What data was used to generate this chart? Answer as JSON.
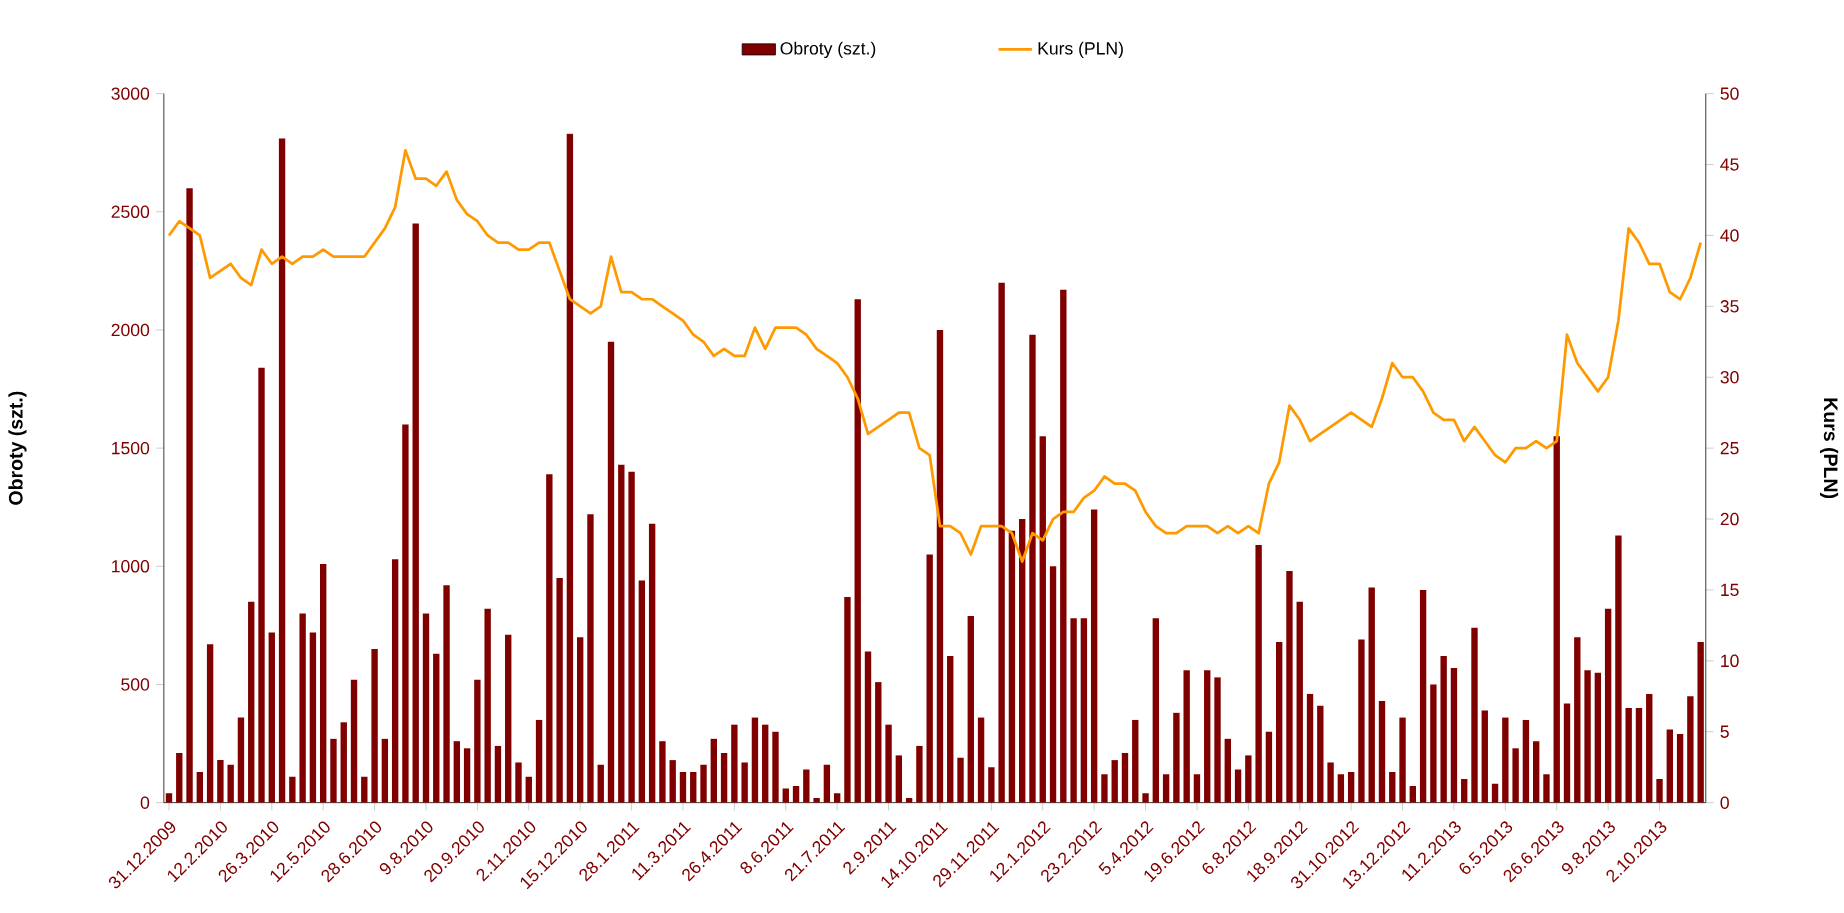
{
  "chart_data": {
    "type": "bar",
    "categories": [
      "31.12.2009",
      null,
      null,
      null,
      null,
      "12.2.2010",
      null,
      null,
      null,
      null,
      "26.3.2010",
      null,
      null,
      null,
      null,
      "12.5.2010",
      null,
      null,
      null,
      null,
      "28.6.2010",
      null,
      null,
      null,
      null,
      "9.8.2010",
      null,
      null,
      null,
      null,
      "20.9.2010",
      null,
      null,
      null,
      null,
      "2.11.2010",
      null,
      null,
      null,
      null,
      "15.12.2010",
      null,
      null,
      null,
      null,
      "28.1.2011",
      null,
      null,
      null,
      null,
      "11.3.2011",
      null,
      null,
      null,
      null,
      "26.4.2011",
      null,
      null,
      null,
      null,
      "8.6.2011",
      null,
      null,
      null,
      null,
      "21.7.2011",
      null,
      null,
      null,
      null,
      "2.9.2011",
      null,
      null,
      null,
      null,
      "14.10.2011",
      null,
      null,
      null,
      null,
      "29.11.2011",
      null,
      null,
      null,
      null,
      "12.1.2012",
      null,
      null,
      null,
      null,
      "23.2.2012",
      null,
      null,
      null,
      null,
      "5.4.2012",
      null,
      null,
      null,
      null,
      "19.6.2012",
      null,
      null,
      null,
      null,
      "6.8.2012",
      null,
      null,
      null,
      null,
      "18.9.2012",
      null,
      null,
      null,
      null,
      "31.10.2012",
      null,
      null,
      null,
      null,
      "13.12.2012",
      null,
      null,
      null,
      null,
      "11.2.2013",
      null,
      null,
      null,
      null,
      "6.5.2013",
      null,
      null,
      null,
      null,
      "26.6.2013",
      null,
      null,
      null,
      null,
      "9.8.2013",
      null,
      null,
      null,
      null,
      "2.10.2013",
      null,
      null,
      null,
      null
    ],
    "series": [
      {
        "name": "Obroty (szt.)",
        "color": "#800000",
        "values": [
          40,
          210,
          2600,
          130,
          670,
          180,
          160,
          360,
          850,
          1840,
          720,
          2810,
          110,
          800,
          720,
          1010,
          270,
          340,
          520,
          110,
          650,
          270,
          1030,
          1600,
          2450,
          800,
          630,
          920,
          260,
          230,
          520,
          820,
          240,
          710,
          170,
          110,
          350,
          1390,
          950,
          2830,
          700,
          1220,
          160,
          1950,
          1430,
          1400,
          940,
          1180,
          260,
          180,
          130,
          130,
          160,
          270,
          210,
          330,
          170,
          360,
          330,
          300,
          60,
          70,
          140,
          20,
          160,
          40,
          870,
          2130,
          640,
          510,
          330,
          200,
          20,
          240,
          1050,
          2000,
          620,
          190,
          790,
          360,
          150,
          2200,
          1150,
          1200,
          1980,
          1550,
          1000,
          2170,
          780,
          780,
          1240,
          120,
          180,
          210,
          350,
          40,
          780,
          120,
          380,
          560,
          120,
          560,
          530,
          270,
          140,
          200,
          1090,
          300,
          680,
          980,
          850,
          460,
          410,
          170,
          120,
          130,
          690,
          910,
          430,
          130,
          360,
          70,
          900,
          500,
          620,
          570,
          100,
          740,
          390,
          80,
          360,
          230,
          350,
          260,
          120,
          1550,
          420,
          700,
          560,
          550,
          820,
          1130,
          400,
          400,
          460,
          100,
          310,
          290,
          450,
          680
        ]
      },
      {
        "name": "Kurs (PLN)",
        "type": "line",
        "axis": "y2",
        "color": "#ff9900",
        "values": [
          40,
          41,
          40.5,
          40,
          37,
          37.5,
          38,
          37,
          36.5,
          39,
          38,
          38.5,
          38,
          38.5,
          38.5,
          39,
          38.5,
          38.5,
          38.5,
          38.5,
          39.5,
          40.5,
          42,
          46,
          44,
          44,
          43.5,
          44.5,
          42.5,
          41.5,
          41,
          40,
          39.5,
          39.5,
          39,
          39,
          39.5,
          39.5,
          37.5,
          35.5,
          35,
          34.5,
          35,
          38.5,
          36,
          36,
          35.5,
          35.5,
          35,
          34.5,
          34,
          33,
          32.5,
          31.5,
          32,
          31.5,
          31.5,
          33.5,
          32,
          33.5,
          33.5,
          33.5,
          33,
          32,
          31.5,
          31,
          30,
          28.5,
          26,
          26.5,
          27,
          27.5,
          27.5,
          25,
          24.5,
          19.5,
          19.5,
          19,
          17.5,
          19.5,
          19.5,
          19.5,
          19,
          17,
          19,
          18.5,
          20,
          20.5,
          20.5,
          21.5,
          22,
          23,
          22.5,
          22.5,
          22,
          20.5,
          19.5,
          19,
          19,
          19.5,
          19.5,
          19.5,
          19,
          19.5,
          19,
          19.5,
          19,
          22.5,
          24,
          28,
          27,
          25.5,
          26,
          26.5,
          27,
          27.5,
          27,
          26.5,
          28.5,
          31,
          30,
          30,
          29,
          27.5,
          27,
          27,
          25.5,
          26.5,
          25.5,
          24.5,
          24,
          25,
          25,
          25.5,
          25,
          25.5,
          33,
          31,
          30,
          29,
          30,
          34,
          40.5,
          39.5,
          38,
          38,
          36,
          35.5,
          37,
          39.5
        ]
      }
    ],
    "ylabel": "Obroty (szt.)",
    "y2label": "Kurs (PLN)",
    "ylim": [
      0,
      3000
    ],
    "yticks": [
      0,
      500,
      1000,
      1500,
      2000,
      2500,
      3000
    ],
    "y2lim": [
      0,
      50
    ],
    "y2ticks": [
      0,
      5,
      10,
      15,
      20,
      25,
      30,
      35,
      40,
      45,
      50
    ],
    "legend": "top"
  }
}
